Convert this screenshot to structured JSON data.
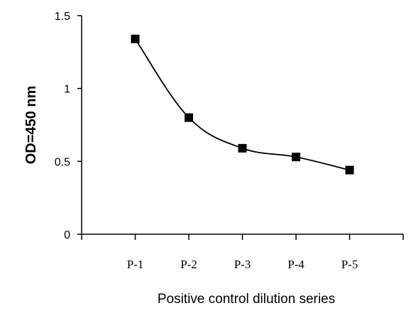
{
  "chart_data": {
    "type": "line",
    "categories": [
      "P-1",
      "P-2",
      "P-3",
      "P-4",
      "P-5"
    ],
    "series": [
      {
        "values": [
          1.34,
          0.8,
          0.59,
          0.53,
          0.44
        ]
      }
    ],
    "title": "",
    "xlabel": "Positive control dilution series",
    "ylabel": "OD=450 nm",
    "ylim": [
      0,
      1.5
    ],
    "yticks": [
      0,
      0.5,
      1,
      1.5
    ],
    "ytick_labels": [
      "0",
      "0.5",
      "1",
      "1.5"
    ],
    "grid": false,
    "legend": "none",
    "marker": "square",
    "line_style": "smoothed",
    "colors": {
      "line": "#000000",
      "marker": "#000000",
      "axis": "#000000"
    }
  }
}
